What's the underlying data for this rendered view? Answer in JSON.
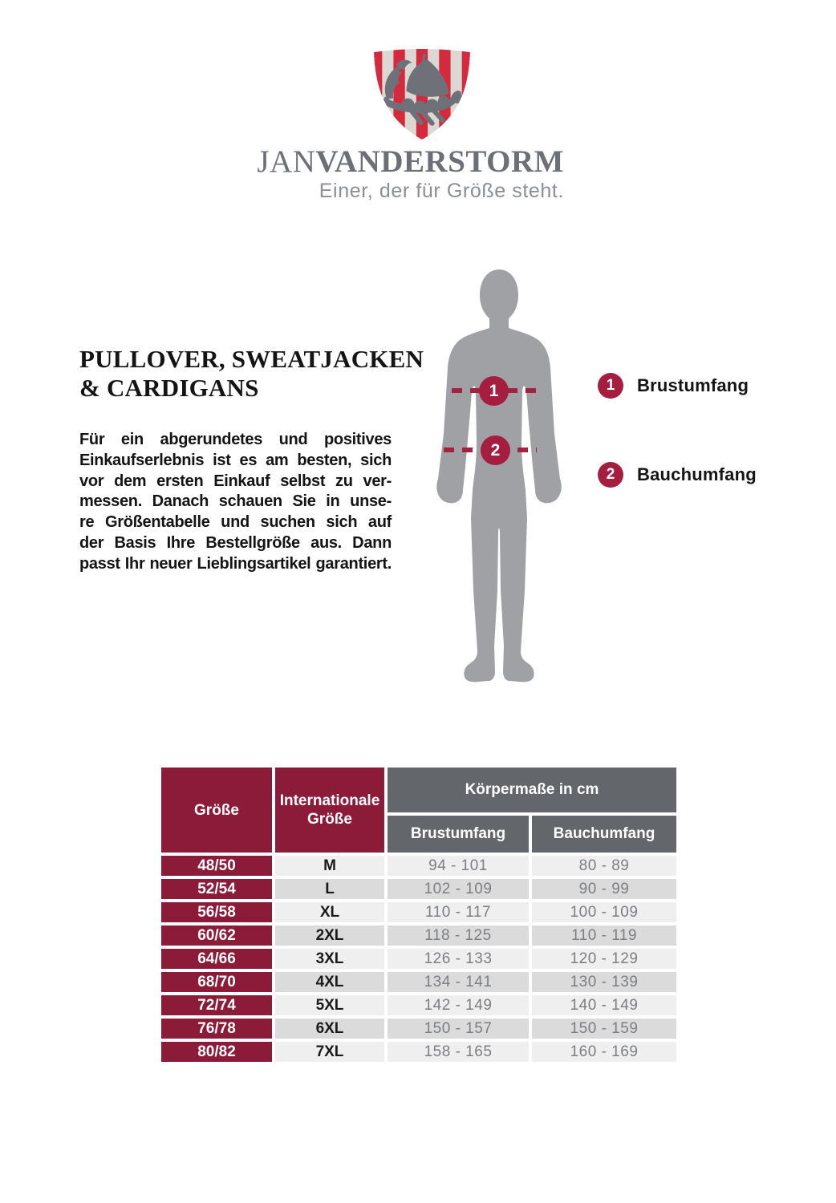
{
  "brand": {
    "name_jan": "JAN",
    "name_vanderstorm": "VANDERSTORM",
    "tagline": "Einer, der für Größe steht.",
    "logo": "viking-ship-shield"
  },
  "intro": {
    "heading_lines": [
      "PULLOVER, SWEATJACKEN",
      "& CARDIGANS"
    ],
    "body_lines": [
      "Für ein abgerundetes und positives",
      "Einkaufserlebnis ist es am besten, sich",
      "vor dem ersten Einkauf selbst zu ver-",
      "messen. Danach schauen Sie in unse-",
      "re Größentabelle und suchen sich auf",
      "der Basis Ihre Bestellgröße aus. Dann",
      "passt Ihr neuer Lieblingsartikel garantiert."
    ]
  },
  "diagram": {
    "markers": [
      {
        "num": "1",
        "label": "Brustumfang"
      },
      {
        "num": "2",
        "label": "Bauchumfang"
      }
    ]
  },
  "table": {
    "headers": {
      "size": "Größe",
      "international": "Internationale Größe",
      "body_measurements": "Körpermaße in cm",
      "chest": "Brustumfang",
      "waist": "Bauchumfang"
    },
    "rows": [
      {
        "size": "48/50",
        "international": "M",
        "chest": "94 - 101",
        "waist": "80 - 89"
      },
      {
        "size": "52/54",
        "international": "L",
        "chest": "102 - 109",
        "waist": "90 - 99"
      },
      {
        "size": "56/58",
        "international": "XL",
        "chest": "110 - 117",
        "waist": "100 - 109"
      },
      {
        "size": "60/62",
        "international": "2XL",
        "chest": "118 - 125",
        "waist": "110 - 119"
      },
      {
        "size": "64/66",
        "international": "3XL",
        "chest": "126 - 133",
        "waist": "120 - 129"
      },
      {
        "size": "68/70",
        "international": "4XL",
        "chest": "134 - 141",
        "waist": "130 - 139"
      },
      {
        "size": "72/74",
        "international": "5XL",
        "chest": "142 - 149",
        "waist": "140 - 149"
      },
      {
        "size": "76/78",
        "international": "6XL",
        "chest": "150 - 157",
        "waist": "150 - 159"
      },
      {
        "size": "80/82",
        "international": "7XL",
        "chest": "158 - 165",
        "waist": "160 - 169"
      }
    ]
  },
  "colors": {
    "table_maroon": "#8c1b3a",
    "badge_red": "#a51e3f",
    "dash_red": "#a32242",
    "logo_red": "#d5293e",
    "shield_light": "#dbd8d3",
    "ship_gray": "#6e7278",
    "silhouette_gray": "#a0a1a5",
    "header_gray": "#63666b",
    "row_light": "#f0eff0",
    "row_dark": "#dbdbdc",
    "brand_gray": "#6c6f75",
    "tagline_gray": "#8b8e93",
    "value_gray": "#7b7e82"
  }
}
